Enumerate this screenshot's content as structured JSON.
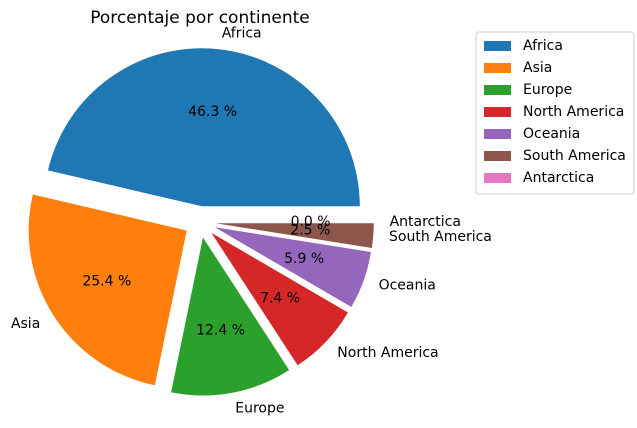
{
  "chart_data": {
    "type": "pie",
    "title": "Porcentaje por continente",
    "categories": [
      "Africa",
      "Asia",
      "Europe",
      "North America",
      "Oceania",
      "South America",
      "Antarctica"
    ],
    "values": [
      46.3,
      25.4,
      12.4,
      7.4,
      5.9,
      2.5,
      0.0
    ],
    "value_labels": [
      "46.3 %",
      "25.4 %",
      "12.4 %",
      "7.4 %",
      "5.9 %",
      "2.5 %",
      "0.0 %"
    ],
    "colors": [
      "#1f77b4",
      "#ff7f0e",
      "#2ca02c",
      "#d62728",
      "#9467bd",
      "#8c564b",
      "#e377c2"
    ],
    "exploded": true,
    "legend_position": "top-right"
  }
}
